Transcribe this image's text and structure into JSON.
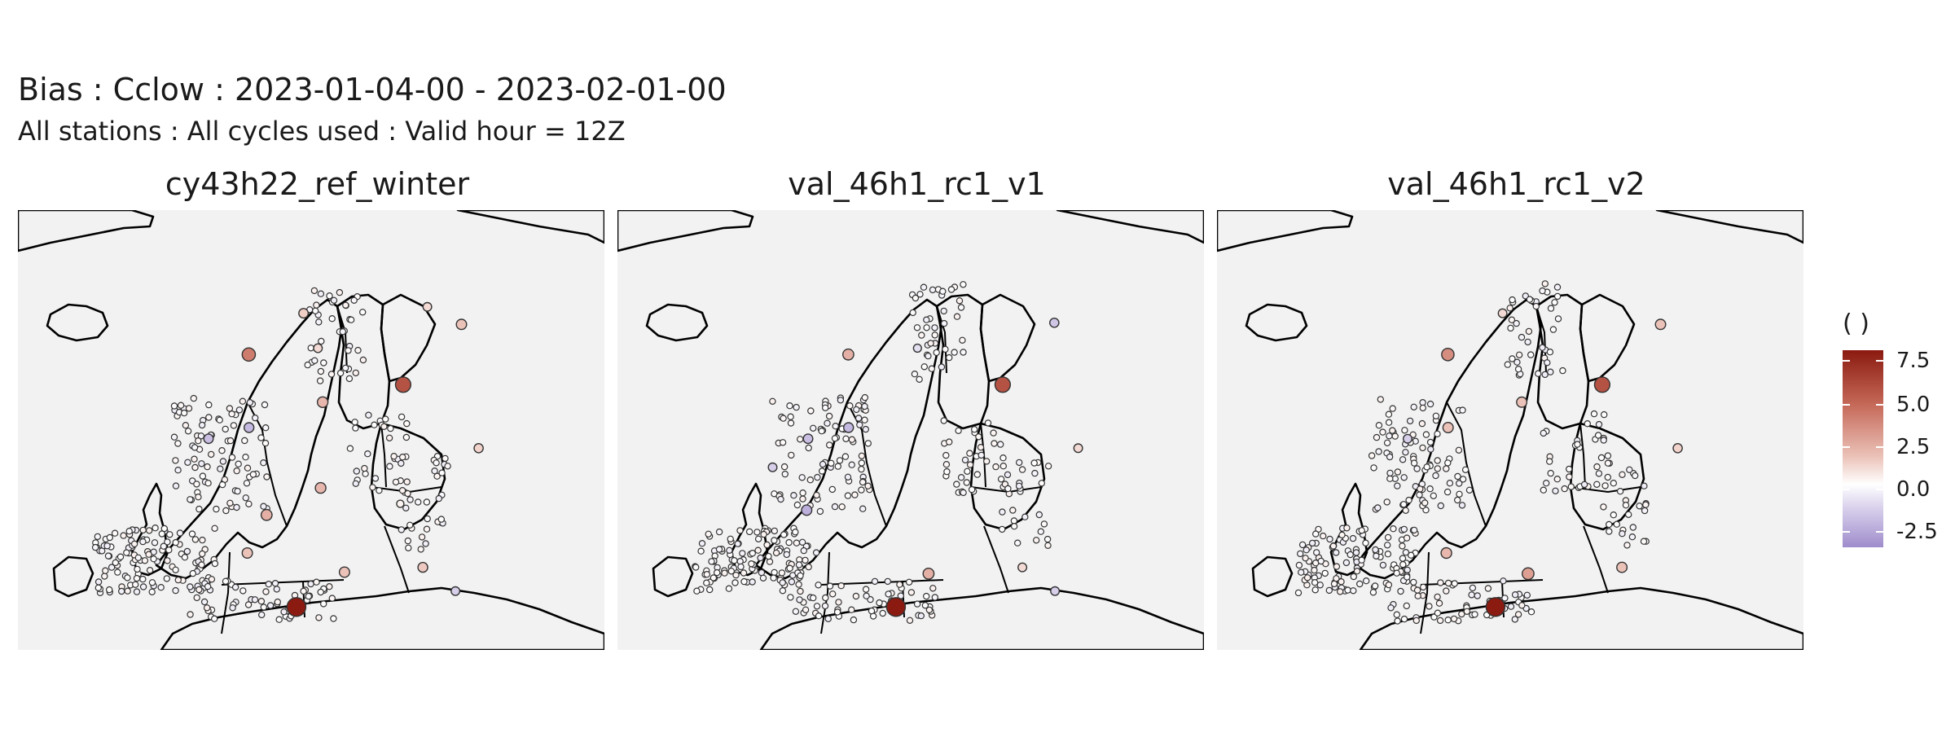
{
  "chart_data": {
    "type": "scatter",
    "title": "Bias : Cclow : 2023-01-04-00 - 2023-02-01-00",
    "subtitle": "All stations : All cycles used : Valid hour = 12Z",
    "panels": [
      {
        "name": "cy43h22_ref_winter"
      },
      {
        "name": "val_46h1_rc1_v1"
      },
      {
        "name": "val_46h1_rc1_v2"
      }
    ],
    "legend": {
      "title": "( )",
      "placement": "right",
      "ticks": [
        7.5,
        5.0,
        2.5,
        0.0,
        -2.5
      ],
      "tick_labels": [
        "7.5",
        "5.0",
        "2.5",
        "0.0",
        "-2.5"
      ],
      "range": [
        -3.6,
        8.3
      ],
      "colors": {
        "high": "#8b1a10",
        "mid": "#ffffff",
        "low": "#9f8ccc"
      }
    },
    "map": {
      "land_color": "#f2f2f2",
      "border_color": "#000000",
      "grid": false
    },
    "series": [
      {
        "stations": [
          {
            "lon": 0.8,
            "lat": 60.3,
            "value": -2.0
          },
          {
            "lon": 4.5,
            "lat": 65.6,
            "value": 4.5
          },
          {
            "lon": 10.4,
            "lat": 68.2,
            "value": 2.0
          },
          {
            "lon": 12.5,
            "lat": 66.0,
            "value": 1.5
          },
          {
            "lon": 24.8,
            "lat": 68.6,
            "value": 1.5
          },
          {
            "lon": 13.7,
            "lat": 62.6,
            "value": 2.8
          },
          {
            "lon": 5.4,
            "lat": 61.0,
            "value": -2.2
          },
          {
            "lon": 22.9,
            "lat": 63.7,
            "value": 6.0
          },
          {
            "lon": 6.7,
            "lat": 53.1,
            "value": 2.5
          },
          {
            "lon": 8.5,
            "lat": 55.5,
            "value": 3.0
          },
          {
            "lon": 13.1,
            "lat": 49.7,
            "value": 8.3
          },
          {
            "lon": 14.5,
            "lat": 57.2,
            "value": 2.8
          },
          {
            "lon": 27.4,
            "lat": 52.2,
            "value": 2.2
          },
          {
            "lon": 29.0,
            "lat": 67.5,
            "value": 2.5
          },
          {
            "lon": 32.5,
            "lat": 59.7,
            "value": 1.8
          },
          {
            "lon": 24.0,
            "lat": 56.2,
            "value": 0.5
          },
          {
            "lon": 18.3,
            "lat": 51.9,
            "value": 2.5
          },
          {
            "lon": 31.5,
            "lat": 50.7,
            "value": -1.5
          }
        ]
      },
      {
        "stations": [
          {
            "lon": 0.8,
            "lat": 60.3,
            "value": -2.0
          },
          {
            "lon": 4.5,
            "lat": 65.6,
            "value": 3.0
          },
          {
            "lon": 12.5,
            "lat": 66.0,
            "value": -1.0
          },
          {
            "lon": 22.9,
            "lat": 63.7,
            "value": 6.0
          },
          {
            "lon": 5.4,
            "lat": 61.0,
            "value": -2.2
          },
          {
            "lon": 1.5,
            "lat": 55.8,
            "value": -2.5
          },
          {
            "lon": 13.1,
            "lat": 49.7,
            "value": 8.3
          },
          {
            "lon": 27.4,
            "lat": 52.2,
            "value": 1.5
          },
          {
            "lon": 31.5,
            "lat": 50.7,
            "value": -1.5
          },
          {
            "lon": 28.2,
            "lat": 67.6,
            "value": -1.8
          },
          {
            "lon": -3.0,
            "lat": 58.5,
            "value": -1.5
          },
          {
            "lon": 16.5,
            "lat": 51.8,
            "value": 3.0
          },
          {
            "lon": 32.5,
            "lat": 59.7,
            "value": 1.5
          }
        ]
      },
      {
        "stations": [
          {
            "lon": 0.8,
            "lat": 60.3,
            "value": -1.5
          },
          {
            "lon": 4.5,
            "lat": 65.6,
            "value": 4.0
          },
          {
            "lon": 10.4,
            "lat": 68.2,
            "value": 1.5
          },
          {
            "lon": 22.9,
            "lat": 63.7,
            "value": 6.0
          },
          {
            "lon": 13.7,
            "lat": 62.6,
            "value": 2.5
          },
          {
            "lon": 5.4,
            "lat": 61.0,
            "value": 2.5
          },
          {
            "lon": 6.7,
            "lat": 53.1,
            "value": 2.8
          },
          {
            "lon": 13.1,
            "lat": 49.7,
            "value": 8.3
          },
          {
            "lon": 27.4,
            "lat": 52.2,
            "value": 2.5
          },
          {
            "lon": 29.0,
            "lat": 67.5,
            "value": 2.5
          },
          {
            "lon": 32.5,
            "lat": 59.7,
            "value": 1.8
          },
          {
            "lon": 16.5,
            "lat": 51.8,
            "value": 3.5
          }
        ]
      }
    ]
  }
}
